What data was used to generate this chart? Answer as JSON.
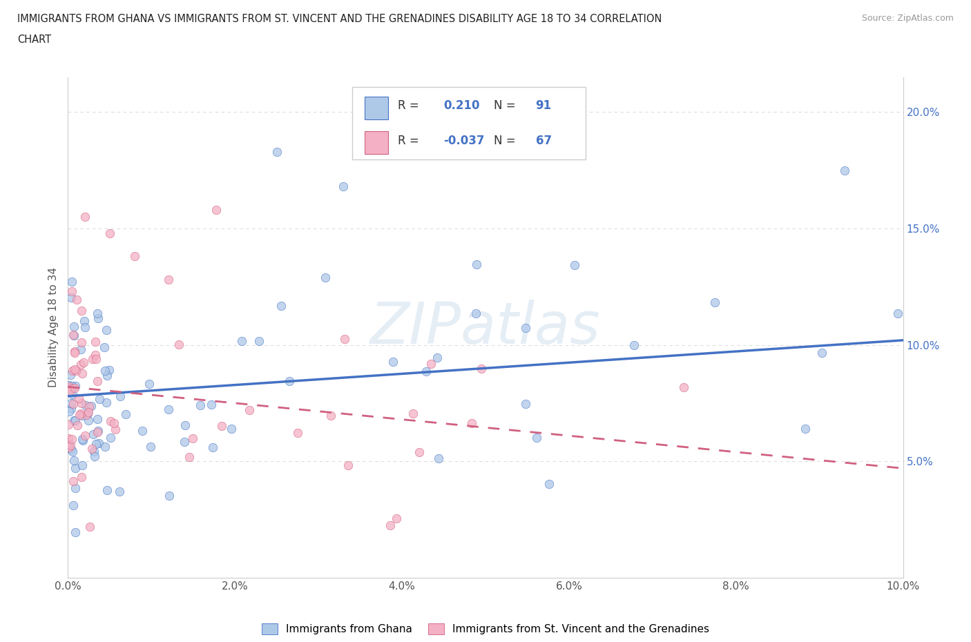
{
  "title_line1": "IMMIGRANTS FROM GHANA VS IMMIGRANTS FROM ST. VINCENT AND THE GRENADINES DISABILITY AGE 18 TO 34 CORRELATION",
  "title_line2": "CHART",
  "source_text": "Source: ZipAtlas.com",
  "ylabel": "Disability Age 18 to 34",
  "xlim": [
    0.0,
    0.1
  ],
  "ylim": [
    0.0,
    0.215
  ],
  "xtick_vals": [
    0.0,
    0.02,
    0.04,
    0.06,
    0.08,
    0.1
  ],
  "xtick_labels": [
    "0.0%",
    "2.0%",
    "4.0%",
    "6.0%",
    "8.0%",
    "10.0%"
  ],
  "ytick_vals": [
    0.05,
    0.1,
    0.15,
    0.2
  ],
  "ytick_labels": [
    "5.0%",
    "10.0%",
    "15.0%",
    "20.0%"
  ],
  "ghana_face_color": "#aec8e8",
  "ghana_edge_color": "#4472c4",
  "ghana_line_color": "#4472c4",
  "sv_face_color": "#f4b0c4",
  "sv_edge_color": "#d06080",
  "sv_line_color": "#d06080",
  "legend_R_color": "#4472c4",
  "watermark": "ZIPatlas",
  "ghana_R": 0.21,
  "ghana_N": 91,
  "sv_R": -0.037,
  "sv_N": 67,
  "ghana_line_start_y": 0.078,
  "ghana_line_end_y": 0.102,
  "sv_line_start_y": 0.082,
  "sv_line_end_y": 0.052,
  "grid_color": "#dddddd",
  "ref_line_y": 0.1
}
